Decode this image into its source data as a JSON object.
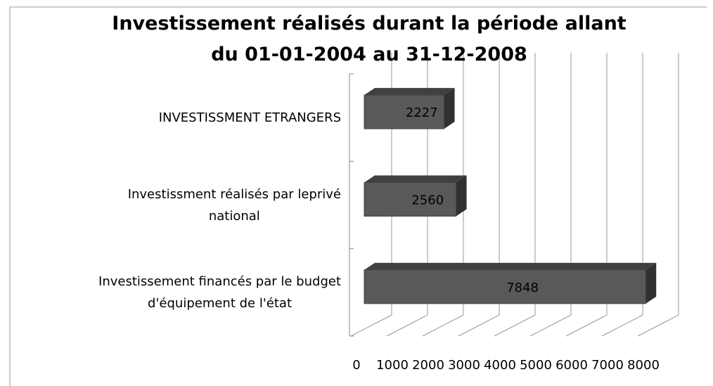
{
  "chart_data": {
    "type": "bar3d_horizontal",
    "title": "Investissement réalisés durant la période allant\ndu 01-01-2004 au 31-12-2008",
    "categories": [
      "INVESTISSMENT ETRANGERS",
      "Investissment réalisés par leprivé\nnational",
      "Investissement financés par le budget\nd'équipement de l'état"
    ],
    "values": [
      2227,
      2560,
      7848
    ],
    "color": "#595959",
    "xlim": [
      0,
      8000
    ],
    "xticks": [
      0,
      1000,
      2000,
      3000,
      4000,
      5000,
      6000,
      7000,
      8000
    ],
    "grid": true
  }
}
